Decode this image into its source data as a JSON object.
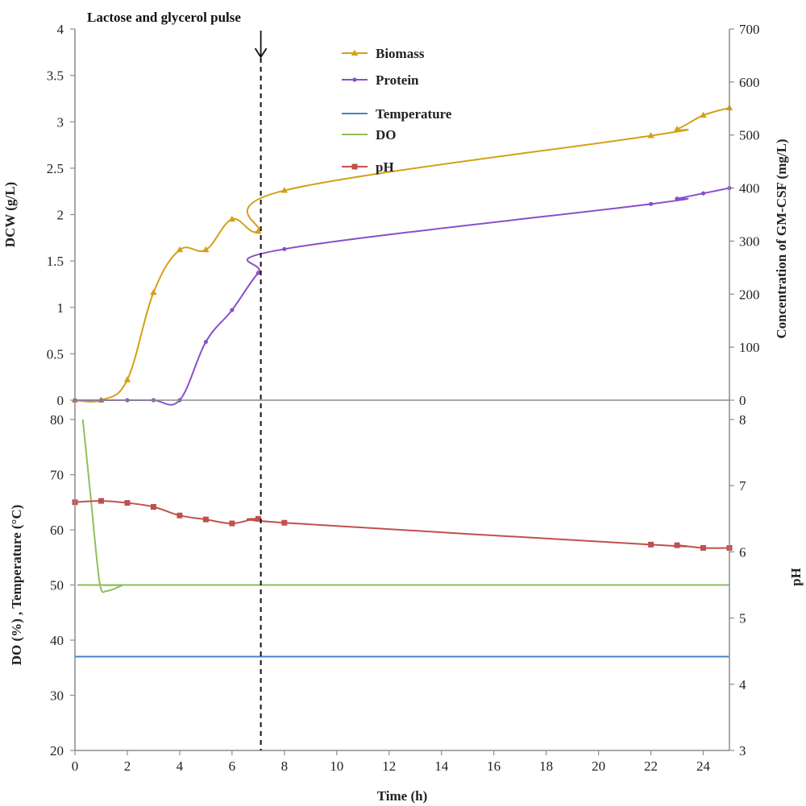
{
  "chart_data": {
    "type": "line",
    "x_axis": {
      "label": "Time (h)",
      "range": [
        0,
        25
      ],
      "ticks": [
        "0",
        "2",
        "4",
        "6",
        "8",
        "10",
        "12",
        "14",
        "16",
        "18",
        "20",
        "22",
        "24"
      ],
      "tick_values": [
        0,
        2,
        4,
        6,
        8,
        10,
        12,
        14,
        16,
        18,
        20,
        22,
        24
      ]
    },
    "annotation": {
      "text": "Lactose and glycerol pulse",
      "x": 7.1
    },
    "panels": [
      {
        "id": "top",
        "left_axis": {
          "label": "DCW (g/L)",
          "range": [
            0,
            4
          ],
          "ticks": [
            "0",
            "0.5",
            "1",
            "1.5",
            "2",
            "2.5",
            "3",
            "3.5",
            "4"
          ],
          "tick_values": [
            0,
            0.5,
            1,
            1.5,
            2,
            2.5,
            3,
            3.5,
            4
          ]
        },
        "right_axis": {
          "label": "Concentration of GM-CSF (mg/L)",
          "range": [
            0,
            700
          ],
          "ticks": [
            "0",
            "100",
            "200",
            "300",
            "400",
            "500",
            "600",
            "700"
          ],
          "tick_values": [
            0,
            100,
            200,
            300,
            400,
            500,
            600,
            700
          ]
        },
        "series": [
          {
            "name": "Biomass",
            "axis": "left",
            "color": "#d4a017",
            "marker": "triangle",
            "x": [
              0,
              1,
              2,
              3,
              4,
              5,
              6,
              7,
              8,
              22,
              23,
              24,
              25
            ],
            "y": [
              0,
              0,
              0.22,
              1.16,
              1.62,
              1.62,
              1.95,
              1.82,
              2.26,
              2.85,
              2.92,
              3.07,
              3.15
            ]
          },
          {
            "name": "Protein",
            "axis": "right",
            "color": "#8a4fc9",
            "marker": "diamond",
            "x": [
              0,
              1,
              2,
              3,
              4,
              5,
              6,
              7,
              8,
              22,
              23,
              24,
              25
            ],
            "y": [
              0,
              0,
              0,
              0,
              0,
              110,
              170,
              240,
              285,
              370,
              380,
              390,
              400
            ]
          }
        ]
      },
      {
        "id": "bottom",
        "left_axis": {
          "label": "DO (%) , Temperature (°C)",
          "range": [
            20,
            80
          ],
          "ticks": [
            "20",
            "30",
            "40",
            "50",
            "60",
            "70",
            "80"
          ],
          "tick_values": [
            20,
            30,
            40,
            50,
            60,
            70,
            80
          ]
        },
        "right_axis": {
          "label": "pH",
          "range": [
            3,
            8
          ],
          "ticks": [
            "3",
            "4",
            "5",
            "6",
            "7",
            "8"
          ],
          "tick_values": [
            3,
            4,
            5,
            6,
            7,
            8
          ]
        },
        "series": [
          {
            "name": "Temperature",
            "axis": "left",
            "color": "#4a7fc9",
            "marker": "none",
            "x": [
              0,
              25
            ],
            "y": [
              37,
              37
            ]
          },
          {
            "name": "DO",
            "axis": "left",
            "color": "#8fbf59",
            "marker": "none",
            "x": [
              0.3,
              0.6,
              0.85,
              1.0,
              1.2,
              1.5,
              1.8,
              2.0,
              25
            ],
            "y": [
              80,
              66,
              54,
              49.2,
              48.9,
              49.3,
              49.9,
              50,
              50
            ]
          },
          {
            "name": "pH",
            "axis": "right",
            "color": "#c0504d",
            "marker": "square",
            "x": [
              0,
              1,
              2,
              3,
              4,
              5,
              6,
              7,
              8,
              22,
              23,
              24,
              25
            ],
            "y": [
              6.75,
              6.77,
              6.74,
              6.68,
              6.55,
              6.49,
              6.43,
              6.5,
              6.44,
              6.11,
              6.1,
              6.06,
              6.06
            ]
          }
        ]
      }
    ],
    "legend": {
      "placement": "top-center",
      "entries": [
        "Biomass",
        "Protein",
        "Temperature",
        "DO",
        "pH"
      ]
    }
  }
}
